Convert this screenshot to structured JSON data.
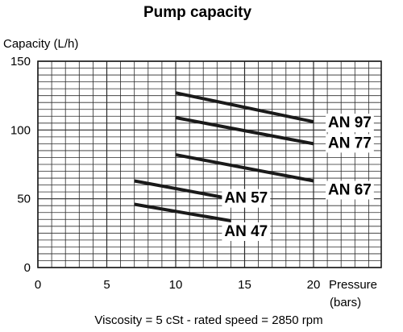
{
  "chart_data": {
    "type": "line",
    "title": "Pump capacity",
    "ylabel": "Capacity  (L/h)",
    "xlabel": "Pressure",
    "xlabel_unit": "(bars)",
    "footnote": "Viscosity = 5 cSt  -  rated speed = 2850 rpm",
    "xlim": [
      0,
      20
    ],
    "ylim": [
      0,
      150
    ],
    "x_major_ticks": [
      0,
      5,
      10,
      15,
      20
    ],
    "y_major_ticks": [
      0,
      50,
      100,
      150
    ],
    "grid": true,
    "series": [
      {
        "name": "AN 97",
        "x": [
          10,
          20
        ],
        "y": [
          127,
          106
        ]
      },
      {
        "name": "AN 77",
        "x": [
          10,
          20
        ],
        "y": [
          109,
          90
        ]
      },
      {
        "name": "AN 67",
        "x": [
          10,
          20
        ],
        "y": [
          82,
          63
        ]
      },
      {
        "name": "AN 57",
        "x": [
          7,
          14
        ],
        "y": [
          63,
          50
        ]
      },
      {
        "name": "AN 47",
        "x": [
          7,
          14
        ],
        "y": [
          46,
          34
        ]
      }
    ]
  }
}
